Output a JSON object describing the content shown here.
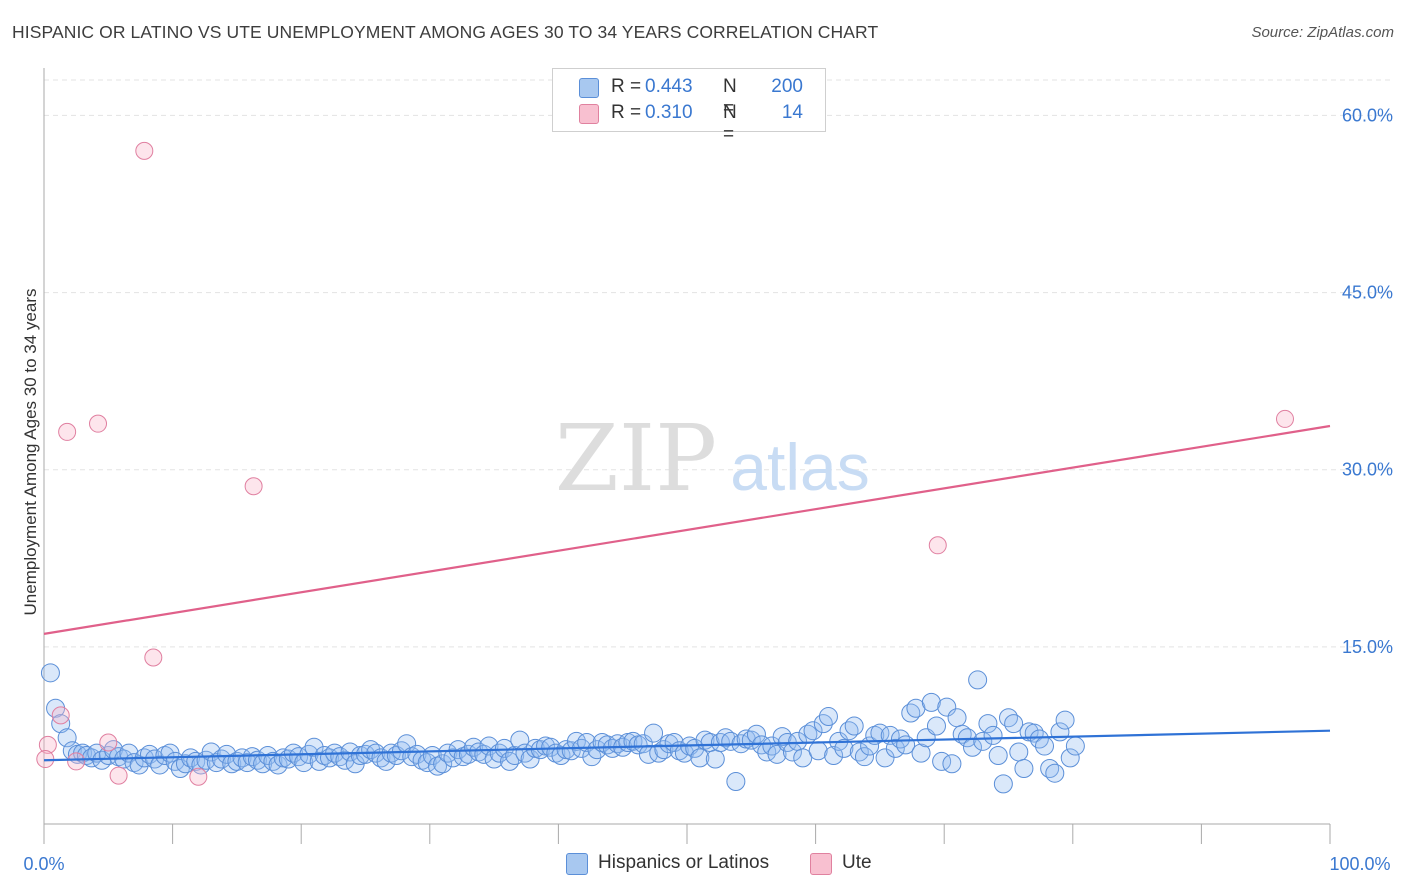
{
  "title": "HISPANIC OR LATINO VS UTE UNEMPLOYMENT AMONG AGES 30 TO 34 YEARS CORRELATION CHART",
  "source": "Source: ZipAtlas.com",
  "watermark": {
    "zip": "ZIP",
    "atlas": "atlas"
  },
  "legend": {
    "r_label": "R =",
    "n_label": "N =",
    "rows": [
      {
        "r": "0.443",
        "n": "200",
        "color": "#a8c8f0",
        "border": "#5b8fd8"
      },
      {
        "r": "0.310",
        "n": "14",
        "color": "#f8c0d0",
        "border": "#e0819f"
      }
    ]
  },
  "bottom_legend": [
    "Hispanics or Latinos",
    "Ute"
  ],
  "colors": {
    "blue_fill": "rgba(150,190,240,0.35)",
    "blue_stroke": "#5b8fd8",
    "blue_line": "#2f72d6",
    "pink_fill": "rgba(248,180,200,0.35)",
    "pink_stroke": "#e07fa0",
    "pink_line": "#e0608a",
    "grid": "#e3e3e3",
    "tick_label": "#3a78d0"
  },
  "chart_data": {
    "type": "scatter",
    "title": "HISPANIC OR LATINO VS UTE UNEMPLOYMENT AMONG AGES 30 TO 34 YEARS CORRELATION CHART",
    "xlabel": "",
    "ylabel": "Unemployment Among Ages 30 to 34 years",
    "xlim": [
      0,
      100
    ],
    "ylim": [
      0,
      63
    ],
    "x_tick_labels": [
      "0.0%",
      "100.0%"
    ],
    "y_ticks": [
      15,
      30,
      45,
      60
    ],
    "y_tick_labels": [
      "15.0%",
      "30.0%",
      "45.0%",
      "60.0%"
    ],
    "grid": true,
    "series": [
      {
        "name": "Hispanics or Latinos",
        "trend": [
          [
            0,
            5.4
          ],
          [
            100,
            7.9
          ]
        ],
        "points": [
          [
            0.5,
            12.8
          ],
          [
            0.9,
            9.8
          ],
          [
            1.3,
            8.5
          ],
          [
            1.8,
            7.3
          ],
          [
            2.2,
            6.2
          ],
          [
            2.6,
            5.9
          ],
          [
            3.0,
            6.0
          ],
          [
            3.3,
            5.8
          ],
          [
            3.7,
            5.6
          ],
          [
            4.1,
            6.0
          ],
          [
            4.5,
            5.4
          ],
          [
            5.0,
            5.8
          ],
          [
            5.4,
            6.3
          ],
          [
            5.8,
            5.7
          ],
          [
            6.2,
            5.5
          ],
          [
            6.6,
            6.0
          ],
          [
            7.0,
            5.2
          ],
          [
            7.4,
            5.0
          ],
          [
            7.8,
            5.6
          ],
          [
            8.2,
            5.9
          ],
          [
            8.6,
            5.5
          ],
          [
            9.0,
            5.0
          ],
          [
            9.4,
            5.8
          ],
          [
            9.8,
            6.0
          ],
          [
            10.2,
            5.3
          ],
          [
            10.6,
            4.7
          ],
          [
            11.0,
            5.1
          ],
          [
            11.4,
            5.6
          ],
          [
            11.8,
            5.3
          ],
          [
            12.2,
            5.0
          ],
          [
            12.6,
            5.4
          ],
          [
            13.0,
            6.1
          ],
          [
            13.4,
            5.2
          ],
          [
            13.8,
            5.5
          ],
          [
            14.2,
            5.9
          ],
          [
            14.6,
            5.1
          ],
          [
            15.0,
            5.3
          ],
          [
            15.4,
            5.6
          ],
          [
            15.8,
            5.2
          ],
          [
            16.2,
            5.7
          ],
          [
            16.6,
            5.4
          ],
          [
            17.0,
            5.1
          ],
          [
            17.4,
            5.8
          ],
          [
            17.8,
            5.3
          ],
          [
            18.2,
            5.0
          ],
          [
            18.6,
            5.6
          ],
          [
            19.0,
            5.5
          ],
          [
            19.4,
            6.0
          ],
          [
            19.8,
            5.7
          ],
          [
            20.2,
            5.2
          ],
          [
            20.6,
            5.9
          ],
          [
            21.0,
            6.5
          ],
          [
            21.4,
            5.3
          ],
          [
            21.8,
            5.8
          ],
          [
            22.2,
            5.6
          ],
          [
            22.6,
            6.0
          ],
          [
            23.0,
            5.7
          ],
          [
            23.4,
            5.4
          ],
          [
            23.8,
            6.1
          ],
          [
            24.2,
            5.1
          ],
          [
            24.6,
            5.8
          ],
          [
            25.0,
            5.9
          ],
          [
            25.4,
            6.3
          ],
          [
            25.8,
            6.0
          ],
          [
            26.2,
            5.6
          ],
          [
            26.6,
            5.3
          ],
          [
            27.0,
            6.0
          ],
          [
            27.4,
            5.8
          ],
          [
            27.8,
            6.2
          ],
          [
            28.2,
            6.8
          ],
          [
            28.6,
            5.7
          ],
          [
            29.0,
            5.9
          ],
          [
            29.4,
            5.4
          ],
          [
            29.8,
            5.2
          ],
          [
            30.2,
            5.8
          ],
          [
            30.6,
            4.9
          ],
          [
            31.0,
            5.1
          ],
          [
            31.4,
            6.0
          ],
          [
            31.8,
            5.6
          ],
          [
            32.2,
            6.3
          ],
          [
            32.6,
            5.7
          ],
          [
            33.0,
            5.9
          ],
          [
            33.4,
            6.5
          ],
          [
            33.8,
            6.1
          ],
          [
            34.2,
            5.9
          ],
          [
            34.6,
            6.6
          ],
          [
            35.0,
            5.5
          ],
          [
            35.4,
            6.0
          ],
          [
            35.8,
            6.4
          ],
          [
            36.2,
            5.3
          ],
          [
            36.6,
            5.8
          ],
          [
            37.0,
            7.1
          ],
          [
            37.4,
            6.0
          ],
          [
            37.8,
            5.5
          ],
          [
            38.2,
            6.4
          ],
          [
            38.6,
            6.3
          ],
          [
            39.0,
            6.6
          ],
          [
            39.4,
            6.5
          ],
          [
            39.8,
            6.0
          ],
          [
            40.2,
            5.8
          ],
          [
            40.6,
            6.3
          ],
          [
            41.0,
            6.2
          ],
          [
            41.4,
            7.0
          ],
          [
            41.8,
            6.4
          ],
          [
            42.2,
            6.9
          ],
          [
            42.6,
            5.7
          ],
          [
            43.0,
            6.3
          ],
          [
            43.4,
            6.9
          ],
          [
            43.8,
            6.7
          ],
          [
            44.2,
            6.4
          ],
          [
            44.6,
            6.8
          ],
          [
            45.0,
            6.5
          ],
          [
            45.4,
            6.9
          ],
          [
            45.8,
            7.0
          ],
          [
            46.2,
            6.7
          ],
          [
            46.6,
            6.8
          ],
          [
            47.0,
            5.9
          ],
          [
            47.4,
            7.7
          ],
          [
            47.8,
            6.0
          ],
          [
            48.2,
            6.3
          ],
          [
            48.6,
            6.8
          ],
          [
            49.0,
            6.9
          ],
          [
            49.4,
            6.2
          ],
          [
            49.8,
            6.0
          ],
          [
            50.2,
            6.6
          ],
          [
            50.6,
            6.4
          ],
          [
            51.0,
            5.6
          ],
          [
            51.4,
            7.1
          ],
          [
            51.8,
            6.9
          ],
          [
            52.2,
            5.5
          ],
          [
            52.6,
            6.9
          ],
          [
            53.0,
            7.3
          ],
          [
            53.4,
            7.0
          ],
          [
            53.8,
            3.6
          ],
          [
            54.2,
            6.8
          ],
          [
            54.6,
            7.2
          ],
          [
            55.0,
            7.1
          ],
          [
            55.4,
            7.6
          ],
          [
            55.8,
            6.7
          ],
          [
            56.2,
            6.1
          ],
          [
            56.6,
            6.6
          ],
          [
            57.0,
            5.9
          ],
          [
            57.4,
            7.4
          ],
          [
            57.8,
            6.9
          ],
          [
            58.2,
            6.1
          ],
          [
            58.6,
            7.0
          ],
          [
            59.0,
            5.6
          ],
          [
            59.4,
            7.6
          ],
          [
            59.8,
            7.9
          ],
          [
            60.2,
            6.2
          ],
          [
            60.6,
            8.5
          ],
          [
            61.0,
            9.1
          ],
          [
            61.4,
            5.8
          ],
          [
            61.8,
            7.0
          ],
          [
            62.2,
            6.4
          ],
          [
            62.6,
            7.9
          ],
          [
            63.0,
            8.3
          ],
          [
            63.4,
            6.1
          ],
          [
            63.8,
            5.7
          ],
          [
            64.2,
            6.6
          ],
          [
            64.6,
            7.5
          ],
          [
            65.0,
            7.7
          ],
          [
            65.4,
            5.6
          ],
          [
            65.8,
            7.5
          ],
          [
            66.2,
            6.4
          ],
          [
            66.6,
            7.2
          ],
          [
            67.0,
            6.7
          ],
          [
            67.4,
            9.4
          ],
          [
            67.8,
            9.8
          ],
          [
            68.2,
            6.0
          ],
          [
            68.6,
            7.3
          ],
          [
            69.0,
            10.3
          ],
          [
            69.4,
            8.3
          ],
          [
            69.8,
            5.3
          ],
          [
            70.2,
            9.9
          ],
          [
            70.6,
            5.1
          ],
          [
            71.0,
            9.0
          ],
          [
            71.4,
            7.6
          ],
          [
            71.8,
            7.3
          ],
          [
            72.2,
            6.5
          ],
          [
            72.6,
            12.2
          ],
          [
            73.0,
            7.0
          ],
          [
            73.4,
            8.5
          ],
          [
            73.8,
            7.5
          ],
          [
            74.2,
            5.8
          ],
          [
            74.6,
            3.4
          ],
          [
            75.0,
            9.0
          ],
          [
            75.4,
            8.5
          ],
          [
            75.8,
            6.1
          ],
          [
            76.2,
            4.7
          ],
          [
            76.6,
            7.8
          ],
          [
            77.0,
            7.7
          ],
          [
            77.4,
            7.2
          ],
          [
            77.8,
            6.6
          ],
          [
            78.2,
            4.7
          ],
          [
            78.6,
            4.3
          ],
          [
            79.0,
            7.8
          ],
          [
            79.4,
            8.8
          ],
          [
            79.8,
            5.6
          ],
          [
            80.2,
            6.6
          ]
        ]
      },
      {
        "name": "Ute",
        "trend": [
          [
            0,
            16.1
          ],
          [
            100,
            33.7
          ]
        ],
        "points": [
          [
            0.3,
            6.7
          ],
          [
            1.3,
            9.2
          ],
          [
            1.8,
            33.2
          ],
          [
            2.5,
            5.3
          ],
          [
            4.2,
            33.9
          ],
          [
            5.0,
            6.9
          ],
          [
            5.8,
            4.1
          ],
          [
            7.8,
            57.0
          ],
          [
            8.5,
            14.1
          ],
          [
            12.0,
            4.0
          ],
          [
            16.3,
            28.6
          ],
          [
            69.5,
            23.6
          ],
          [
            96.5,
            34.3
          ],
          [
            0.1,
            5.5
          ]
        ]
      }
    ]
  }
}
